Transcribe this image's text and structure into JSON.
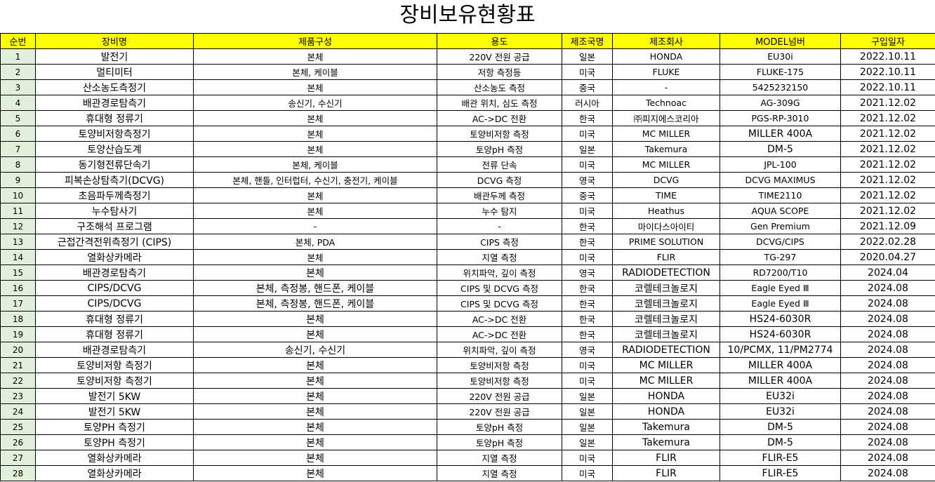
{
  "title": "장비보유현황표",
  "colors": {
    "header_bg": "#ffff00",
    "index_bg": "#e2efda"
  },
  "headers": [
    "순번",
    "장비명",
    "제품구성",
    "용도",
    "제조국명",
    "제조회사",
    "MODEL넘버",
    "구입일자"
  ],
  "rows": [
    [
      "1",
      "발전기",
      "본체",
      "220V 전원 공급",
      "일본",
      "HONDA",
      "EU30i",
      "2022.10.11"
    ],
    [
      "2",
      "멀티미터",
      "본체, 케이블",
      "저항 측정등",
      "미국",
      "FLUKE",
      "FLUKE-175",
      "2022.10.11"
    ],
    [
      "3",
      "산소농도측정기",
      "본체",
      "산소농도 측정",
      "중국",
      "-",
      "5425232150",
      "2022.10.11"
    ],
    [
      "4",
      "배관경로탐측기",
      "송신기, 수신기",
      "배관 위치, 심도 측정",
      "러시아",
      "Technoac",
      "AG-309G",
      "2021.12.02"
    ],
    [
      "5",
      "휴대형 정류기",
      "본체",
      "AC->DC 전환",
      "한국",
      "㈜피지에스코리아",
      "PGS-RP-3010",
      "2021.12.02"
    ],
    [
      "6",
      "토양비저항측정기",
      "본체",
      "토양비저항 측정",
      "미국",
      "MC MILLER",
      "MILLER 400A",
      "2021.12.02"
    ],
    [
      "7",
      "토양산습도계",
      "본체",
      "토양pH 측정",
      "일본",
      "Takemura",
      "DM-5",
      "2021.12.02"
    ],
    [
      "8",
      "동기형전류단속기",
      "본체, 케이블",
      "전류 단속",
      "미국",
      "MC MILLER",
      "JPL-100",
      "2021.12.02"
    ],
    [
      "9",
      "피복손상탐측기(DCVG)",
      "본체, 핸들, 인터럽터, 수신기, 충전기, 케이블",
      "DCVG 측정",
      "영국",
      "DCVG",
      "DCVG MAXIMUS",
      "2021.12.02"
    ],
    [
      "10",
      "초음파두께측정기",
      "본체",
      "배관두께 측정",
      "중국",
      "TIME",
      "TIME2110",
      "2021.12.02"
    ],
    [
      "11",
      "누수탐사기",
      "본체",
      "누수 탐지",
      "미국",
      "Heathus",
      "AQUA SCOPE",
      "2021.12.02"
    ],
    [
      "12",
      "구조해석 프로그램",
      "-",
      "-",
      "한국",
      "마이다스아이티",
      "Gen Premium",
      "2021.12.09"
    ],
    [
      "13",
      "근접간격전위측정기 (CIPS)",
      "본체, PDA",
      "CIPS 측정",
      "한국",
      "PRIME SOLUTION",
      "DCVG/CIPS",
      "2022.02.28"
    ],
    [
      "14",
      "열화상카메라",
      "본체",
      "지열 측정",
      "미국",
      "FLIR",
      "TG-297",
      "2020.04.27"
    ],
    [
      "15",
      "배관경로탐측기",
      "본체",
      "위치파악, 깊이 측정",
      "영국",
      "RADIODETECTION",
      "RD7200/T10",
      "2024.04"
    ],
    [
      "16",
      "CIPS/DCVG",
      "본체, 측정봉, 핸드폰, 케이블",
      "CIPS 및 DCVG 측정",
      "한국",
      "코렐테크놀로지",
      "Eagle Eyed Ⅲ",
      "2024.08"
    ],
    [
      "17",
      "CIPS/DCVG",
      "본체, 측정봉, 핸드폰, 케이블",
      "CIPS 및 DCVG 측정",
      "한국",
      "코렐테크놀로지",
      "Eagle Eyed Ⅲ",
      "2024.08"
    ],
    [
      "18",
      "휴대형 정류기",
      "본체",
      "AC->DC 전환",
      "한국",
      "코렐테크놀로지",
      "HS24-6030R",
      "2024.08"
    ],
    [
      "19",
      "휴대형 정류기",
      "본체",
      "AC->DC 전환",
      "한국",
      "코렐테크놀로지",
      "HS24-6030R",
      "2024.08"
    ],
    [
      "20",
      "배관경로탐측기",
      "송신기, 수신기",
      "위치파악, 깊이 측정",
      "영국",
      "RADIODETECTION",
      "10/PCMX, 11/PM2774",
      "2024.08"
    ],
    [
      "21",
      "토양비저항 측정기",
      "본체",
      "토양비저항 측정",
      "미국",
      "MC MILLER",
      "MILLER 400A",
      "2024.08"
    ],
    [
      "22",
      "토양비저항 측정기",
      "본체",
      "토양비저항 측정",
      "미국",
      "MC MILLER",
      "MILLER 400A",
      "2024.08"
    ],
    [
      "23",
      "발전기 5KW",
      "본체",
      "220V 전원 공급",
      "일본",
      "HONDA",
      "EU32i",
      "2024.08"
    ],
    [
      "24",
      "발전기 5KW",
      "본체",
      "220V 전원 공급",
      "일본",
      "HONDA",
      "EU32i",
      "2024.08"
    ],
    [
      "25",
      "토양PH 측정기",
      "본체",
      "토양pH 측정",
      "일본",
      "Takemura",
      "DM-5",
      "2024.08"
    ],
    [
      "26",
      "토양PH 측정기",
      "본체",
      "토양pH 측정",
      "일본",
      "Takemura",
      "DM-5",
      "2024.08"
    ],
    [
      "27",
      "열화상카메라",
      "본체",
      "지열 측정",
      "미국",
      "FLIR",
      "FLIR-E5",
      "2024.08"
    ],
    [
      "28",
      "열화상카메라",
      "본체",
      "지열 측정",
      "미국",
      "FLIR",
      "FLIR-E5",
      "2024.08"
    ]
  ]
}
